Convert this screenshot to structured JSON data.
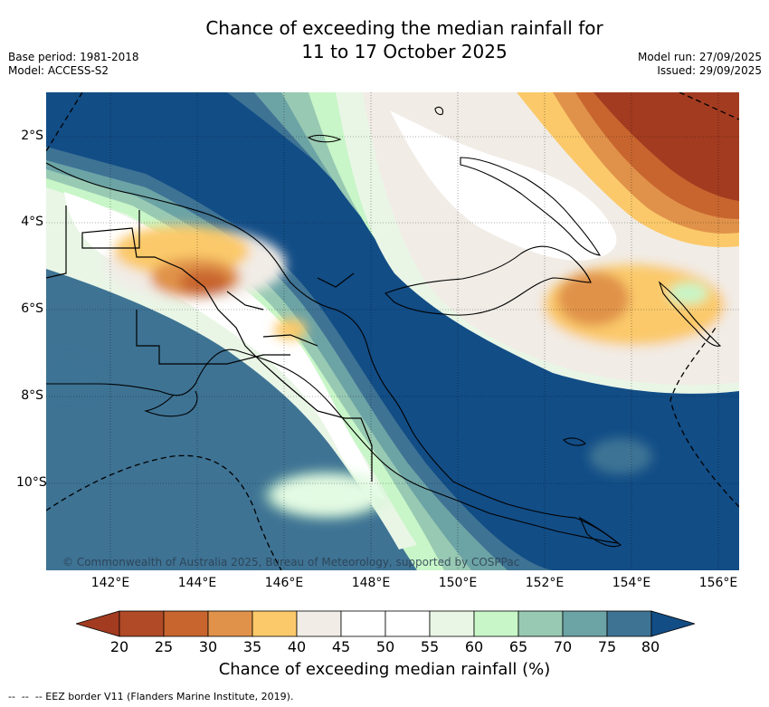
{
  "title": {
    "line1": "Chance of exceeding the median rainfall for",
    "line2": "11 to 17 October 2025"
  },
  "meta_left": {
    "base_period": "Base period: 1981-2018",
    "model": "Model: ACCESS-S2"
  },
  "meta_right": {
    "model_run": "Model run: 27/09/2025",
    "issued": "Issued: 29/09/2025"
  },
  "map": {
    "x_ticks": [
      "142°E",
      "144°E",
      "146°E",
      "148°E",
      "150°E",
      "152°E",
      "154°E",
      "156°E"
    ],
    "y_ticks": [
      "2°S",
      "4°S",
      "6°S",
      "8°S",
      "10°S"
    ],
    "copyright": "© Commonwealth of Australia 2025, Bureau of Meteorology, supported by COSPPac"
  },
  "colorbar": {
    "ticks": [
      "20",
      "25",
      "30",
      "35",
      "40",
      "45",
      "50",
      "55",
      "60",
      "65",
      "70",
      "75",
      "80"
    ],
    "label": "Chance of exceeding median rainfall (%)",
    "colors": [
      "#a33b20",
      "#b14a27",
      "#c8652f",
      "#e0924a",
      "#fbc96a",
      "#f1ece6",
      "#ffffff",
      "#ffffff",
      "#e9f6e6",
      "#c8f6c8",
      "#98c9b3",
      "#6ca3a5",
      "#3e7394",
      "#124d86"
    ]
  },
  "legend": {
    "eez_text": "-- EEZ border V11 (Flanders Marine Institute, 2019)."
  }
}
